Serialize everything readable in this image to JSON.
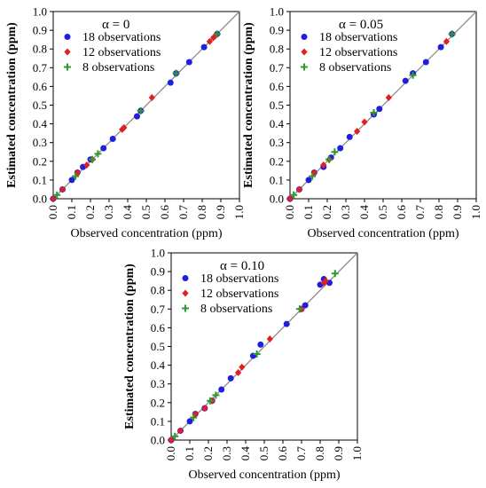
{
  "chart_data": [
    {
      "type": "scatter",
      "title": "α = 0",
      "xlabel": "Observed concentration (ppm)",
      "ylabel": "Estimated concentration (ppm)",
      "xlim": [
        0,
        1
      ],
      "ylim": [
        0,
        1
      ],
      "ticks": [
        "0.0",
        "0.1",
        "0.2",
        "0.3",
        "0.4",
        "0.5",
        "0.6",
        "0.7",
        "0.8",
        "0.9",
        "1.0"
      ],
      "legend_position": "top-left",
      "grid": false,
      "reference_line": "y = x",
      "series": [
        {
          "name": "18 observations",
          "marker": "circle",
          "color": "#1f1fe0",
          "points": [
            [
              0.0,
              0.0
            ],
            [
              0.05,
              0.05
            ],
            [
              0.1,
              0.1
            ],
            [
              0.13,
              0.14
            ],
            [
              0.16,
              0.17
            ],
            [
              0.2,
              0.21
            ],
            [
              0.27,
              0.27
            ],
            [
              0.32,
              0.32
            ],
            [
              0.45,
              0.44
            ],
            [
              0.47,
              0.47
            ],
            [
              0.63,
              0.62
            ],
            [
              0.66,
              0.67
            ],
            [
              0.73,
              0.73
            ],
            [
              0.81,
              0.81
            ],
            [
              0.88,
              0.88
            ]
          ]
        },
        {
          "name": "12 observations",
          "marker": "diamond",
          "color": "#e01f1f",
          "points": [
            [
              0.0,
              0.0
            ],
            [
              0.05,
              0.05
            ],
            [
              0.13,
              0.14
            ],
            [
              0.18,
              0.18
            ],
            [
              0.21,
              0.21
            ],
            [
              0.37,
              0.37
            ],
            [
              0.38,
              0.38
            ],
            [
              0.53,
              0.54
            ],
            [
              0.84,
              0.84
            ],
            [
              0.86,
              0.86
            ],
            [
              0.87,
              0.87
            ]
          ]
        },
        {
          "name": "8 observations",
          "marker": "plus",
          "color": "#2e9a2e",
          "points": [
            [
              0.02,
              0.02
            ],
            [
              0.12,
              0.12
            ],
            [
              0.21,
              0.21
            ],
            [
              0.24,
              0.24
            ],
            [
              0.47,
              0.47
            ],
            [
              0.66,
              0.67
            ],
            [
              0.88,
              0.88
            ]
          ]
        }
      ]
    },
    {
      "type": "scatter",
      "title": "α = 0.05",
      "xlabel": "Observed concentration (ppm)",
      "ylabel": "Estimated concentration (ppm)",
      "xlim": [
        0,
        1
      ],
      "ylim": [
        0,
        1
      ],
      "ticks": [
        "0.0",
        "0.1",
        "0.2",
        "0.3",
        "0.4",
        "0.5",
        "0.6",
        "0.7",
        "0.8",
        "0.9",
        "1.0"
      ],
      "legend_position": "top-left",
      "grid": false,
      "reference_line": "y = x",
      "series": [
        {
          "name": "18 observations",
          "marker": "circle",
          "color": "#1f1fe0",
          "points": [
            [
              0.0,
              0.0
            ],
            [
              0.05,
              0.05
            ],
            [
              0.1,
              0.1
            ],
            [
              0.13,
              0.14
            ],
            [
              0.18,
              0.17
            ],
            [
              0.22,
              0.22
            ],
            [
              0.27,
              0.27
            ],
            [
              0.32,
              0.33
            ],
            [
              0.45,
              0.45
            ],
            [
              0.48,
              0.48
            ],
            [
              0.62,
              0.63
            ],
            [
              0.66,
              0.67
            ],
            [
              0.73,
              0.73
            ],
            [
              0.81,
              0.81
            ],
            [
              0.87,
              0.88
            ]
          ]
        },
        {
          "name": "12 observations",
          "marker": "diamond",
          "color": "#e01f1f",
          "points": [
            [
              0.0,
              0.0
            ],
            [
              0.05,
              0.05
            ],
            [
              0.13,
              0.14
            ],
            [
              0.18,
              0.18
            ],
            [
              0.21,
              0.21
            ],
            [
              0.36,
              0.36
            ],
            [
              0.4,
              0.41
            ],
            [
              0.53,
              0.54
            ],
            [
              0.84,
              0.84
            ]
          ]
        },
        {
          "name": "8 observations",
          "marker": "plus",
          "color": "#2e9a2e",
          "points": [
            [
              0.02,
              0.02
            ],
            [
              0.12,
              0.12
            ],
            [
              0.21,
              0.21
            ],
            [
              0.24,
              0.25
            ],
            [
              0.45,
              0.46
            ],
            [
              0.66,
              0.66
            ],
            [
              0.87,
              0.88
            ]
          ]
        }
      ]
    },
    {
      "type": "scatter",
      "title": "α = 0.10",
      "xlabel": "Observed concentration (ppm)",
      "ylabel": "Estimated concentration (ppm)",
      "xlim": [
        0,
        1
      ],
      "ylim": [
        0,
        1
      ],
      "ticks": [
        "0.0",
        "0.1",
        "0.2",
        "0.3",
        "0.4",
        "0.5",
        "0.6",
        "0.7",
        "0.8",
        "0.9",
        "1.0"
      ],
      "legend_position": "top-left",
      "grid": false,
      "reference_line": "y = x",
      "series": [
        {
          "name": "18 observations",
          "marker": "circle",
          "color": "#1f1fe0",
          "points": [
            [
              0.0,
              0.0
            ],
            [
              0.05,
              0.05
            ],
            [
              0.1,
              0.1
            ],
            [
              0.13,
              0.14
            ],
            [
              0.18,
              0.17
            ],
            [
              0.22,
              0.21
            ],
            [
              0.27,
              0.27
            ],
            [
              0.32,
              0.33
            ],
            [
              0.44,
              0.45
            ],
            [
              0.48,
              0.51
            ],
            [
              0.62,
              0.62
            ],
            [
              0.7,
              0.7
            ],
            [
              0.72,
              0.72
            ],
            [
              0.8,
              0.83
            ],
            [
              0.82,
              0.86
            ],
            [
              0.85,
              0.84
            ]
          ]
        },
        {
          "name": "12 observations",
          "marker": "diamond",
          "color": "#e01f1f",
          "points": [
            [
              0.0,
              0.0
            ],
            [
              0.05,
              0.05
            ],
            [
              0.13,
              0.14
            ],
            [
              0.18,
              0.17
            ],
            [
              0.22,
              0.21
            ],
            [
              0.36,
              0.36
            ],
            [
              0.38,
              0.39
            ],
            [
              0.53,
              0.54
            ],
            [
              0.7,
              0.7
            ],
            [
              0.82,
              0.84
            ],
            [
              0.83,
              0.85
            ]
          ]
        },
        {
          "name": "8 observations",
          "marker": "plus",
          "color": "#2e9a2e",
          "points": [
            [
              0.02,
              0.02
            ],
            [
              0.12,
              0.12
            ],
            [
              0.21,
              0.21
            ],
            [
              0.24,
              0.24
            ],
            [
              0.46,
              0.46
            ],
            [
              0.69,
              0.7
            ],
            [
              0.88,
              0.89
            ]
          ]
        }
      ]
    }
  ]
}
